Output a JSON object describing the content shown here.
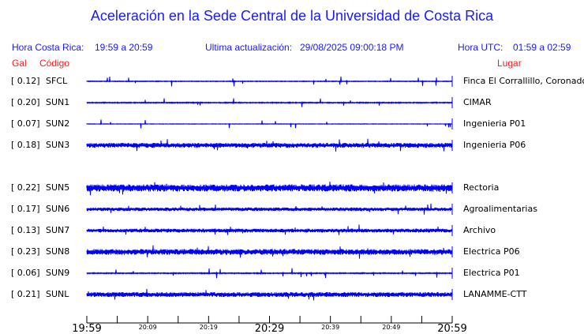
{
  "chart_data": {
    "type": "line",
    "title": "Aceleración en la Sede Central de la Universidad de Costa Rica",
    "header": {
      "local_label": "Hora Costa Rica:",
      "local_range": "19:59 a 20:59",
      "update_label": "Ultima actualización:",
      "update_value": "29/08/2025 09:00:18 PM",
      "utc_label": "Hora UTC:",
      "utc_range": "01:59 a 02:59"
    },
    "columns": {
      "gal": "Gal",
      "code": "Código",
      "place": "Lugar"
    },
    "stations": [
      {
        "gal": "[   0.12]",
        "code": "SFCL",
        "place": "Finca El Corrallillo, Coronado",
        "noise": 0.3
      },
      {
        "gal": "[   0.20]",
        "code": "SUN1",
        "place": "CIMAR",
        "noise": 0.4
      },
      {
        "gal": "[   0.07]",
        "code": "SUN2",
        "place": "Ingenieria P01",
        "noise": 0.2
      },
      {
        "gal": "[   0.18]",
        "code": "SUN3",
        "place": "Ingenieria P06",
        "noise": 2
      },
      {
        "gal": "[   0.22]",
        "code": "SUN5",
        "place": "Rectoria",
        "noise": 3
      },
      {
        "gal": "[   0.17]",
        "code": "SUN6",
        "place": "Agroalimentarias",
        "noise": 1.5
      },
      {
        "gal": "[   0.13]",
        "code": "SUN7",
        "place": "Archivo",
        "noise": 1.6
      },
      {
        "gal": "[   0.23]",
        "code": "SUN8",
        "place": "Electrica P06",
        "noise": 2.4
      },
      {
        "gal": "[   0.06]",
        "code": "SUN9",
        "place": "Electrica P01",
        "noise": 0.4
      },
      {
        "gal": "[   0.21]",
        "code": "SUNL",
        "place": "LANAMME-CTT",
        "noise": 2
      }
    ],
    "x_ticks_major": [
      "19:59",
      "20:29",
      "20:59"
    ],
    "x_ticks_minor": [
      "20:09",
      "20:19",
      "20:39",
      "20:49"
    ],
    "trace_color": "#0000ff"
  }
}
